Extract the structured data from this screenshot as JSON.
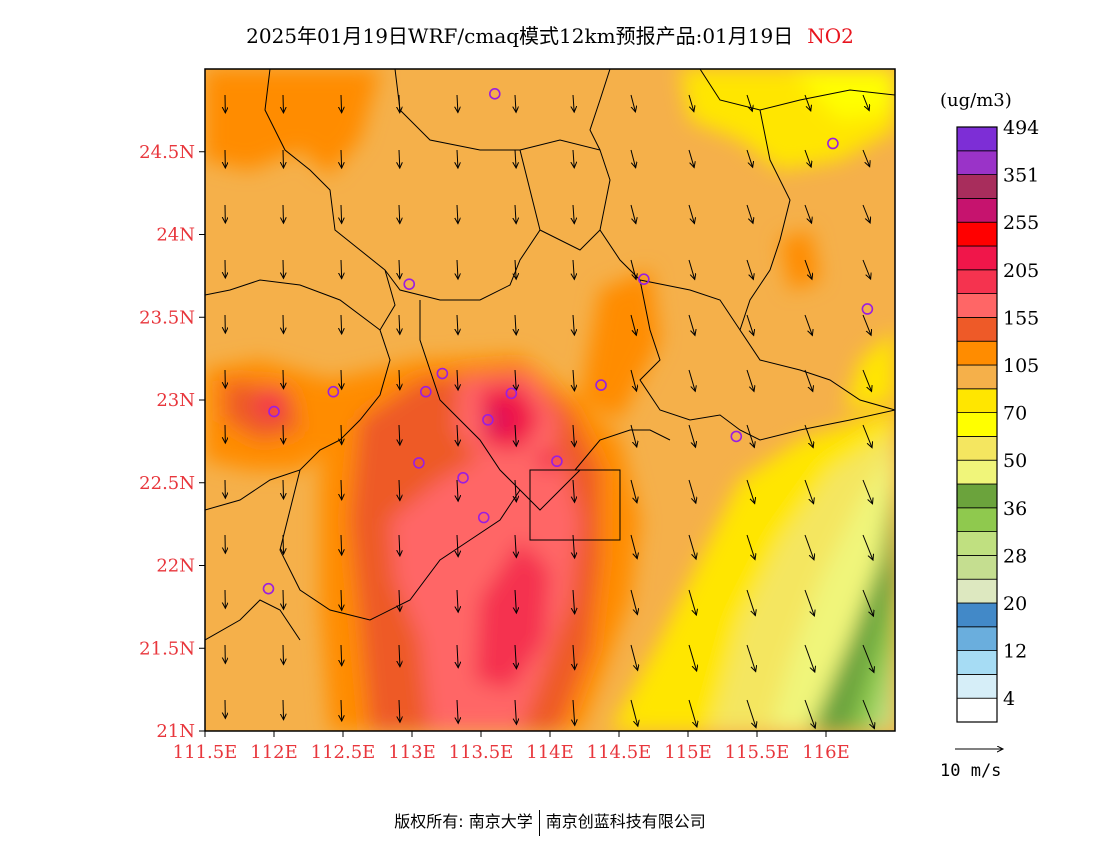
{
  "title": {
    "main": "2025年01月19日WRF/cmaq模式12km预报产品:01月19日",
    "pollutant": "NO2"
  },
  "map": {
    "lon_range": [
      111.5,
      116.5
    ],
    "lat_range": [
      21.0,
      25.0
    ],
    "x_ticks": [
      "111.5E",
      "112E",
      "112.5E",
      "113E",
      "113.5E",
      "114E",
      "114.5E",
      "115E",
      "115.5E",
      "116E"
    ],
    "y_ticks": [
      "21N",
      "21.5N",
      "22N",
      "22.5N",
      "23N",
      "23.5N",
      "24N",
      "24.5N"
    ],
    "y_tick_values": [
      21,
      21.5,
      22,
      22.5,
      23,
      23.5,
      24,
      24.5
    ],
    "x_tick_values": [
      111.5,
      112,
      112.5,
      113,
      113.5,
      114,
      114.5,
      115,
      115.5,
      116
    ],
    "stations": [
      [
        113.6,
        24.85
      ],
      [
        116.05,
        24.55
      ],
      [
        116.3,
        23.55
      ],
      [
        112.98,
        23.7
      ],
      [
        114.68,
        23.73
      ],
      [
        112.0,
        22.93
      ],
      [
        112.43,
        23.05
      ],
      [
        113.1,
        23.05
      ],
      [
        113.22,
        23.16
      ],
      [
        113.55,
        22.88
      ],
      [
        113.72,
        23.04
      ],
      [
        114.37,
        23.09
      ],
      [
        115.35,
        22.78
      ],
      [
        113.05,
        22.62
      ],
      [
        113.37,
        22.53
      ],
      [
        113.52,
        22.29
      ],
      [
        114.05,
        22.63
      ],
      [
        111.96,
        21.86
      ]
    ]
  },
  "legend": {
    "unit": "(ug/m3)",
    "colors": [
      "#ffffff",
      "#d6eef8",
      "#a6dcf4",
      "#6aaedd",
      "#4289c8",
      "#dde8c0",
      "#c5de90",
      "#c0e080",
      "#8fc94e",
      "#6ba33c",
      "#f0f57a",
      "#f4e660",
      "#ffff00",
      "#ffe600",
      "#f5b04a",
      "#ff8c00",
      "#ee5a28",
      "#ff6666",
      "#f5334f",
      "#f0164a",
      "#ff0000",
      "#c6136e",
      "#a82d5c",
      "#9a33c8",
      "#7d2ed6"
    ],
    "labels": [
      "4",
      "12",
      "20",
      "28",
      "36",
      "50",
      "70",
      "105",
      "155",
      "205",
      "255",
      "351",
      "494"
    ]
  },
  "wind_scale": {
    "label": "10 m/s"
  },
  "footer": {
    "left": "版权所有: 南京大学",
    "right": "南京创蓝科技有限公司"
  }
}
